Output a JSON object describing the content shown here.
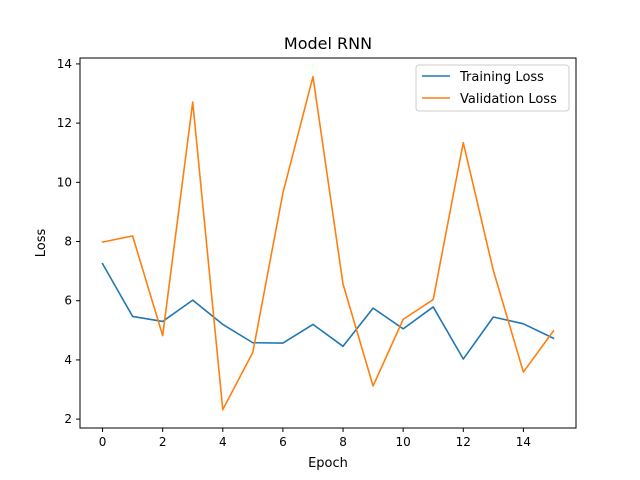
{
  "chart_data": {
    "type": "line",
    "title": "Model RNN",
    "xlabel": "Epoch",
    "ylabel": "Loss",
    "x": [
      0,
      1,
      2,
      3,
      4,
      5,
      6,
      7,
      8,
      9,
      10,
      11,
      12,
      13,
      14,
      15
    ],
    "xticks": [
      0,
      2,
      4,
      6,
      8,
      10,
      12,
      14
    ],
    "yticks": [
      2,
      4,
      6,
      8,
      10,
      12,
      14
    ],
    "xlim": [
      -0.75,
      15.75
    ],
    "ylim": [
      1.7,
      14.2
    ],
    "grid": false,
    "legend_position": "top-right",
    "series": [
      {
        "name": "Training Loss",
        "color": "#1f77b4",
        "values": [
          7.25,
          5.47,
          5.3,
          6.02,
          5.2,
          4.58,
          4.57,
          5.2,
          4.46,
          5.75,
          5.05,
          5.79,
          4.03,
          5.45,
          5.22,
          4.73
        ]
      },
      {
        "name": "Validation Loss",
        "color": "#ff7f0e",
        "values": [
          7.98,
          8.19,
          4.82,
          12.71,
          2.32,
          4.26,
          9.64,
          13.57,
          6.56,
          3.12,
          5.37,
          6.04,
          11.34,
          7.02,
          3.59,
          4.98
        ]
      }
    ]
  }
}
